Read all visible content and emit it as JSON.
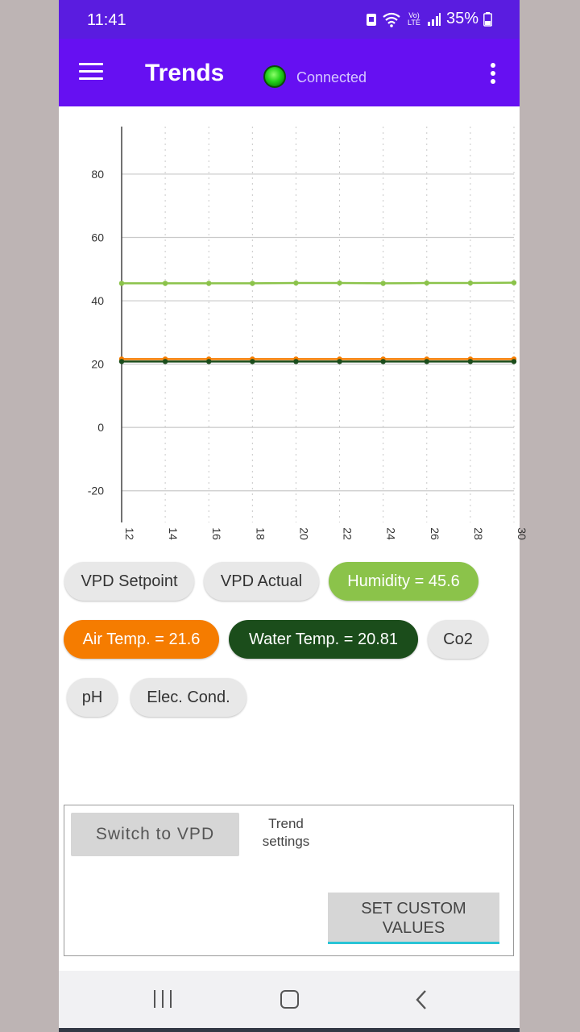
{
  "status_bar": {
    "time": "11:41",
    "network": "Vo) LTE",
    "battery": "35%"
  },
  "app_bar": {
    "title": "Trends",
    "connection": "Connected",
    "connection_color": "#22d11a"
  },
  "chart_data": {
    "type": "line",
    "x": [
      12,
      14,
      16,
      18,
      20,
      22,
      24,
      26,
      28,
      30
    ],
    "xticks": [
      "12",
      "14",
      "16",
      "18",
      "20",
      "22",
      "24",
      "26",
      "28",
      "30"
    ],
    "yticks": [
      "80",
      "60",
      "40",
      "20",
      "0",
      "-20"
    ],
    "ylim": [
      -30,
      95
    ],
    "xlim": [
      12,
      30
    ],
    "series": [
      {
        "color": "#8bc34a",
        "values": [
          45.5,
          45.5,
          45.5,
          45.5,
          45.6,
          45.6,
          45.5,
          45.6,
          45.6,
          45.7
        ]
      },
      {
        "color": "#f57c00",
        "values": [
          21.6,
          21.6,
          21.6,
          21.6,
          21.6,
          21.6,
          21.6,
          21.6,
          21.6,
          21.6
        ]
      },
      {
        "color": "#1b4d1b",
        "values": [
          20.81,
          20.81,
          20.81,
          20.81,
          20.81,
          20.81,
          20.81,
          20.81,
          20.81,
          20.81
        ]
      }
    ]
  },
  "chips": {
    "vpd_setpoint": "VPD Setpoint",
    "vpd_actual": "VPD Actual",
    "humidity": "Humidity = 45.6",
    "air_temp": "Air Temp. = 21.6",
    "water_temp": "Water Temp. = 20.81",
    "co2": "Co2",
    "ph": "pH",
    "elec_cond": "Elec. Cond."
  },
  "colors": {
    "humidity": "#8bc34a",
    "air_temp": "#f57c00",
    "water_temp": "#1b4d1b",
    "accent": "#6610f2"
  },
  "settings": {
    "switch_vpd": "Switch to VPD",
    "trend_settings": "Trend settings",
    "set_custom_values": "SET CUSTOM VALUES"
  },
  "nav": {
    "recent": "recent-apps-icon",
    "home": "home-icon",
    "back": "back-icon"
  }
}
